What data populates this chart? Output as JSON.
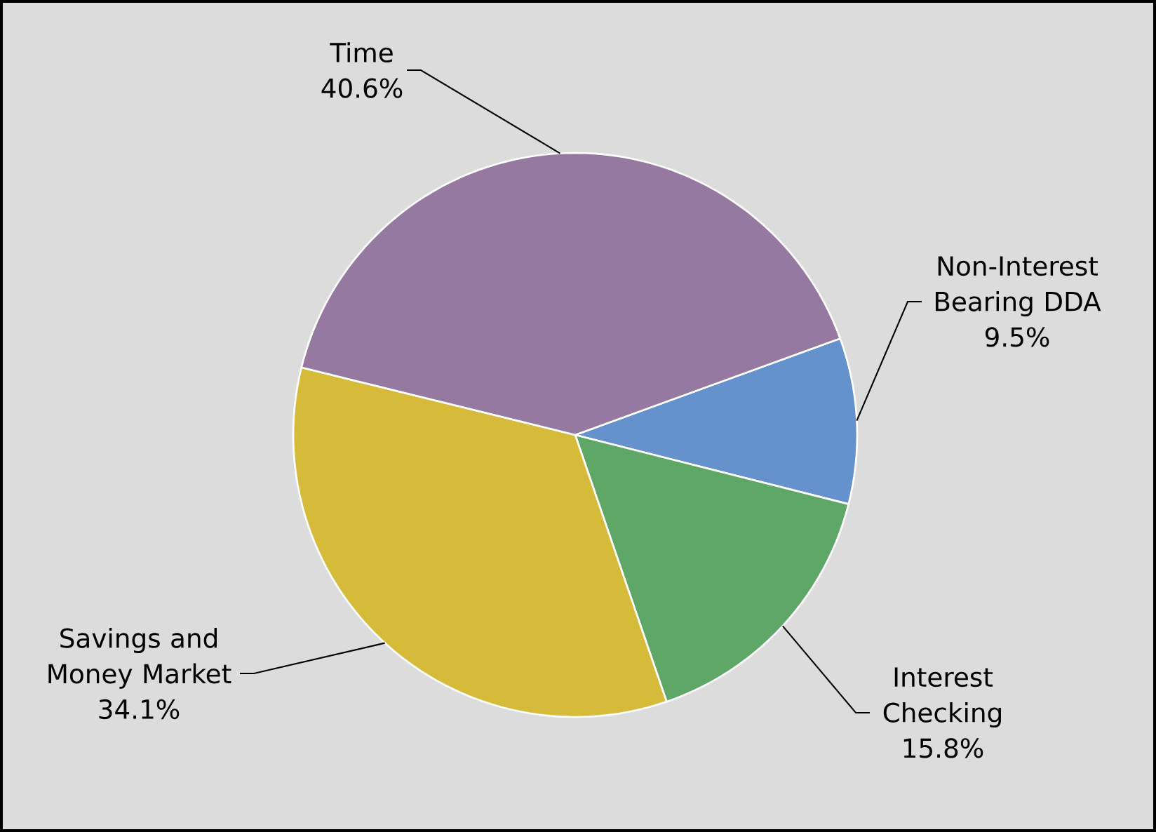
{
  "chart_data": {
    "type": "pie",
    "categories": [
      "Non-Interest Bearing DDA",
      "Interest Checking",
      "Savings and Money Market",
      "Time"
    ],
    "values": [
      9.5,
      15.8,
      34.1,
      40.6
    ],
    "colors": [
      "#6591cc",
      "#5ea766",
      "#d6bb3a",
      "#9679a0"
    ],
    "value_labels": [
      "9.5%",
      "15.8%",
      "34.1%",
      "40.6%"
    ]
  }
}
